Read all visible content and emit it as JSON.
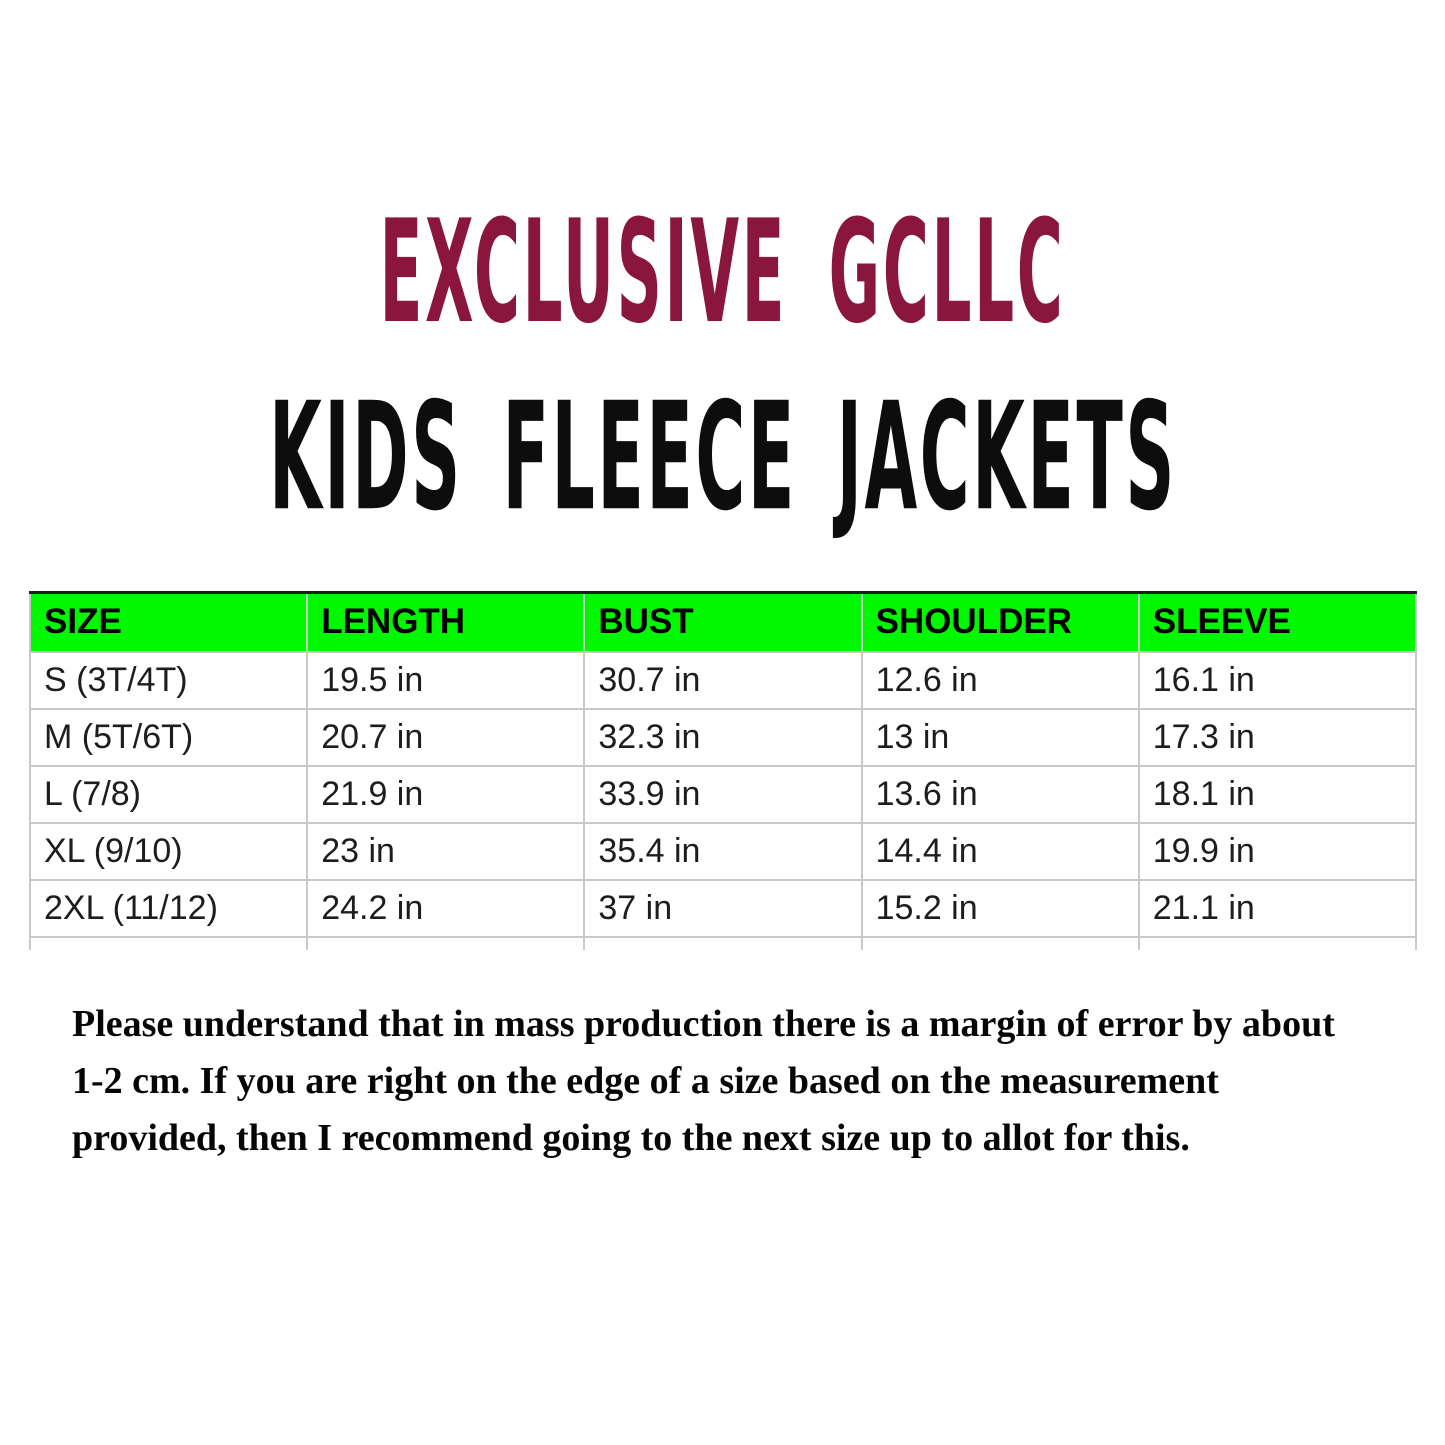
{
  "chart_data": {
    "type": "table",
    "title": "EXCLUSIVE GCLLC",
    "subtitle": "KIDS FLEECE JACKETS",
    "columns": [
      "SIZE",
      "LENGTH",
      "BUST",
      "SHOULDER",
      "SLEEVE"
    ],
    "rows": [
      [
        "S (3T/4T)",
        "19.5 in",
        "30.7 in",
        "12.6 in",
        "16.1 in"
      ],
      [
        "M (5T/6T)",
        "20.7 in",
        "32.3 in",
        "13 in",
        "17.3 in"
      ],
      [
        "L (7/8)",
        "21.9 in",
        "33.9 in",
        "13.6 in",
        "18.1 in"
      ],
      [
        "XL (9/10)",
        "23 in",
        "35.4 in",
        "14.4 in",
        "19.9 in"
      ],
      [
        "2XL (11/12)",
        "24.2 in",
        "37 in",
        "15.2 in",
        "21.1 in"
      ]
    ],
    "layout_hints": {
      "header_fill": "bright-green",
      "grid": "on",
      "last_row_clipped": true
    }
  },
  "disclaimer": {
    "lines": [
      "Please understand that in mass production there is a margin of error by about",
      "1-2 cm. If you are right on the edge of a size based on the measurement",
      "provided, then I recommend going to the next size up to allot for this."
    ]
  },
  "colors": {
    "brand": "#8B163D",
    "title": "#0d0d0d",
    "header-bg": "#00F700",
    "border": "#c8c8c8",
    "cell-text": "#1d1d1d"
  }
}
